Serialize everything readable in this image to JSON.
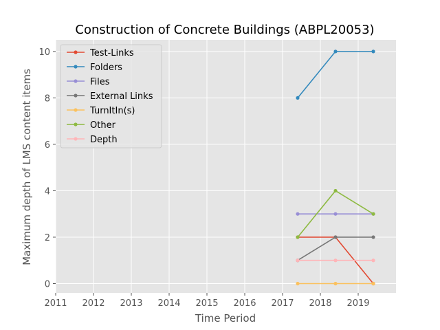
{
  "chart_data": {
    "type": "line",
    "title": "Construction of Concrete Buildings (ABPL20053)",
    "xlabel": "Time Period",
    "ylabel": "Maximum depth of LMS content items",
    "xlim": [
      2011,
      2020
    ],
    "ylim": [
      -0.4,
      10.5
    ],
    "xticks": [
      2011,
      2012,
      2013,
      2014,
      2015,
      2016,
      2017,
      2018,
      2019
    ],
    "yticks": [
      0,
      2,
      4,
      6,
      8,
      10
    ],
    "grid": true,
    "legend_position": "top-left",
    "x": [
      2017.4,
      2018.4,
      2019.4
    ],
    "series": [
      {
        "name": "Test-Links",
        "color": "#e24a33",
        "values": [
          2,
          2,
          0
        ]
      },
      {
        "name": "Folders",
        "color": "#348abd",
        "values": [
          8,
          10,
          10
        ]
      },
      {
        "name": "Files",
        "color": "#988ed5",
        "values": [
          3,
          3,
          3
        ]
      },
      {
        "name": "External Links",
        "color": "#777777",
        "values": [
          1,
          2,
          2
        ]
      },
      {
        "name": "TurnItIn(s)",
        "color": "#fbc15e",
        "values": [
          0,
          0,
          0
        ]
      },
      {
        "name": "Other",
        "color": "#8eba42",
        "values": [
          2,
          4,
          3
        ]
      },
      {
        "name": "Depth",
        "color": "#ffb5b8",
        "values": [
          1,
          1,
          1
        ]
      }
    ]
  }
}
